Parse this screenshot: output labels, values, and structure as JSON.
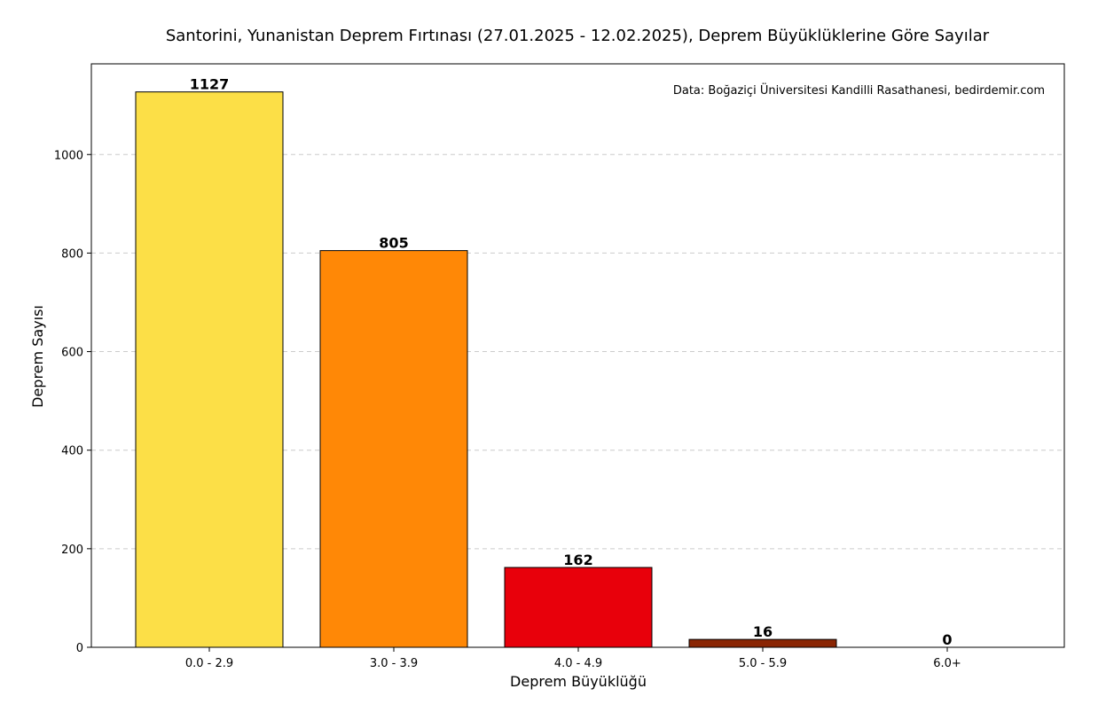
{
  "chart_data": {
    "type": "bar",
    "title": "Santorini, Yunanistan Deprem Fırtınası (27.01.2025 - 12.02.2025), Deprem Büyüklüklerine Göre Sayılar",
    "xlabel": "Deprem Büyüklüğü",
    "ylabel": "Deprem Sayısı",
    "categories": [
      "0.0 - 2.9",
      "3.0 - 3.9",
      "4.0 - 4.9",
      "5.0 - 5.9",
      "6.0+"
    ],
    "values": [
      1127,
      805,
      162,
      16,
      0
    ],
    "colors": [
      "#FCDF47",
      "#FF8806",
      "#E8000B",
      "#8A2503",
      "#3D0A00"
    ],
    "ylim": [
      0,
      1184
    ],
    "yticks": [
      0,
      200,
      400,
      600,
      800,
      1000
    ],
    "grid": true,
    "annotation": "Data: Boğaziçi Üniversitesi Kandilli Rasathanesi, bedirdemir.com"
  }
}
